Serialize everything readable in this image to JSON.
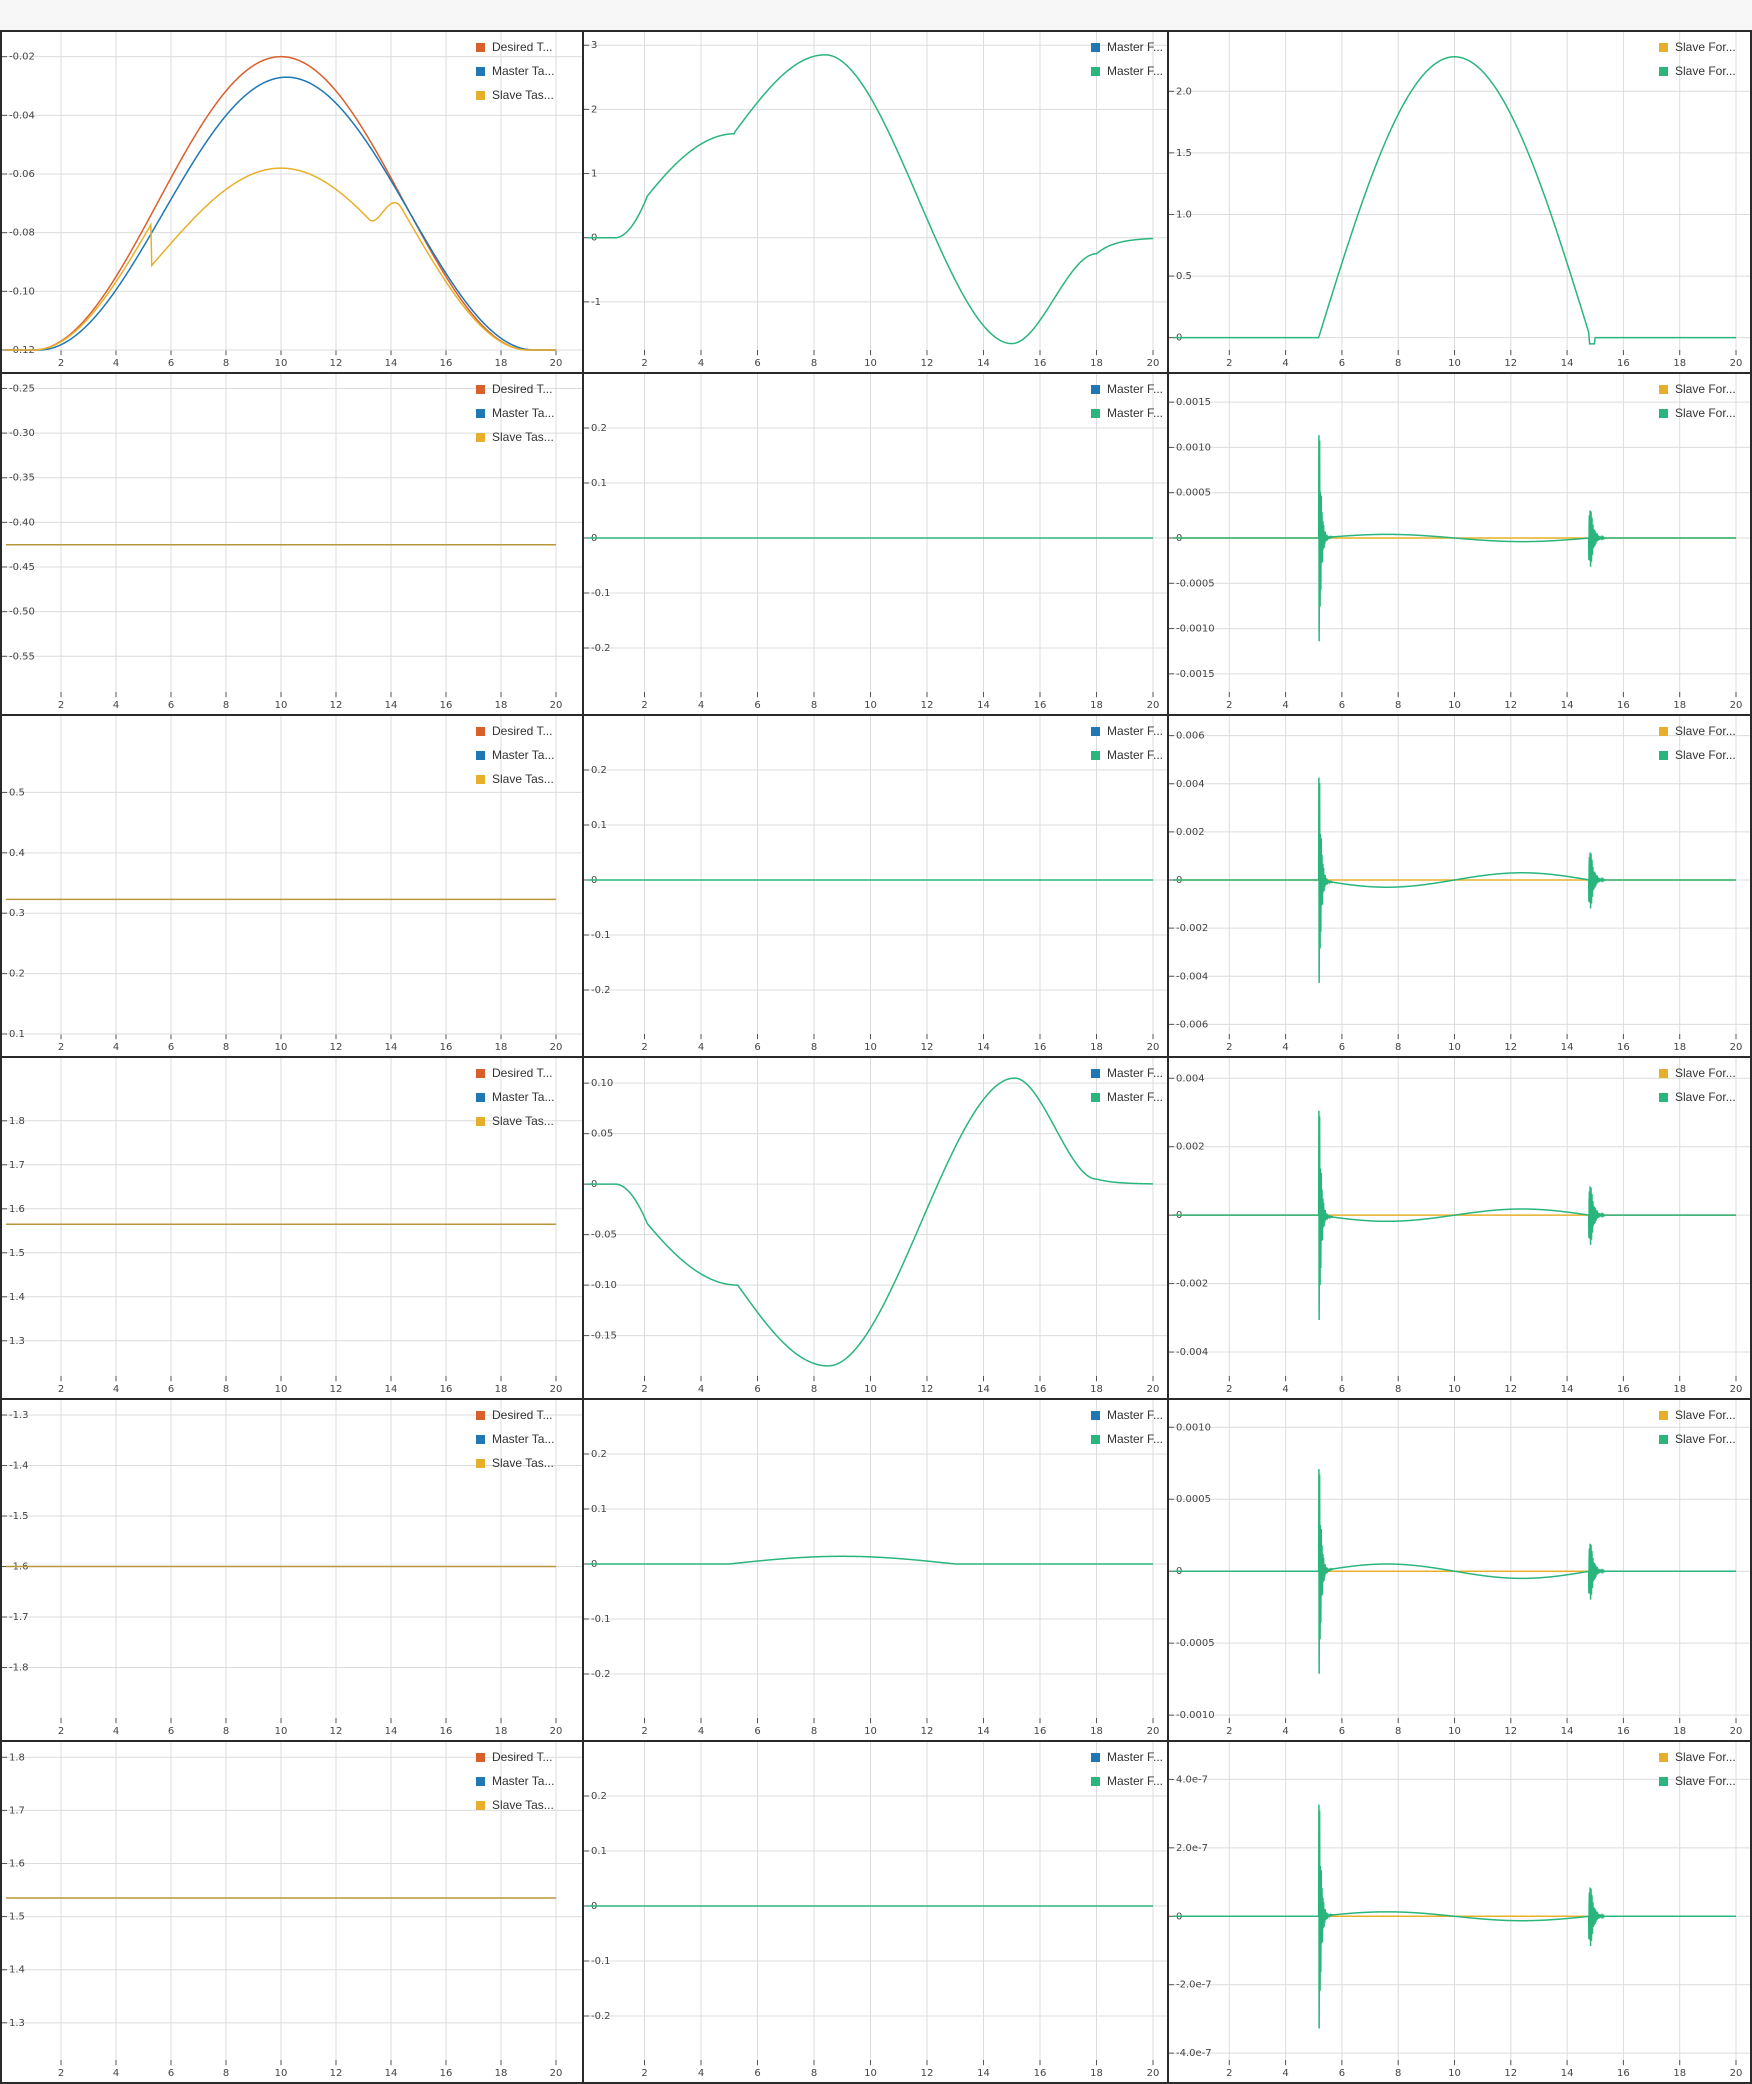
{
  "colors": {
    "desired": "#d95f2b",
    "master": "#1f77b4",
    "slave": "#e8b02a",
    "force_b": "#2ab57d",
    "grid": "#dcdcdc"
  },
  "legends": {
    "col1": [
      {
        "label": "Desired T...",
        "color": "#d95f2b"
      },
      {
        "label": "Master Ta...",
        "color": "#1f77b4"
      },
      {
        "label": "Slave Tas...",
        "color": "#e8b02a"
      }
    ],
    "col2": [
      {
        "label": "Master F...",
        "color": "#1f77b4"
      },
      {
        "label": "Master F...",
        "color": "#2ab57d"
      }
    ],
    "col3": [
      {
        "label": "Slave For...",
        "color": "#e8b02a"
      },
      {
        "label": "Slave For...",
        "color": "#2ab57d"
      }
    ]
  },
  "chart_data": [
    {
      "id": "p0",
      "type": "line",
      "legend": "col1",
      "xlim": [
        0,
        20
      ],
      "xticks": [
        2,
        4,
        6,
        8,
        10,
        12,
        14,
        16,
        18,
        20
      ],
      "ylim": [
        -0.12,
        -0.015
      ],
      "yticks": [
        -0.02,
        -0.04,
        -0.06,
        -0.08,
        -0.1,
        -0.12
      ],
      "yticklabels": [
        "-0.02",
        "-0.04",
        "-0.06",
        "-0.08",
        "-0.10",
        "-0.12"
      ],
      "series": [
        {
          "name": "Desired T...",
          "color": "#d95f2b",
          "fn": "bump",
          "params": {
            "base": -0.12,
            "amp": 0.1,
            "c": 10,
            "w": 9
          }
        },
        {
          "name": "Master Ta...",
          "color": "#1f77b4",
          "fn": "bump",
          "params": {
            "base": -0.12,
            "amp": 0.093,
            "c": 10.2,
            "w": 9
          }
        },
        {
          "name": "Slave Tas...",
          "color": "#e8b02a",
          "fn": "slavebump",
          "params": {
            "base": -0.12,
            "amp": 0.062,
            "c": 10,
            "w": 9,
            "x0": 5.3
          }
        }
      ]
    },
    {
      "id": "p1",
      "type": "line",
      "legend": "col2",
      "xlim": [
        0,
        20
      ],
      "xticks": [
        2,
        4,
        6,
        8,
        10,
        12,
        14,
        16,
        18,
        20
      ],
      "ylim": [
        -1.75,
        3.05
      ],
      "yticks": [
        3,
        2,
        1,
        0,
        -1
      ],
      "yticklabels": [
        "3",
        "2",
        "1",
        "0",
        "-1"
      ],
      "series": [
        {
          "name": "Master F...",
          "color": "#2ab57d",
          "fn": "mforce",
          "params": {
            "amp": 1
          }
        }
      ]
    },
    {
      "id": "p2",
      "type": "line",
      "legend": "col3",
      "xlim": [
        0,
        20
      ],
      "xticks": [
        2,
        4,
        6,
        8,
        10,
        12,
        14,
        16,
        18,
        20
      ],
      "ylim": [
        -0.1,
        2.4
      ],
      "yticks": [
        2.0,
        1.5,
        1.0,
        0.5,
        0
      ],
      "yticklabels": [
        "2.0",
        "1.5",
        "1.0",
        "0.5",
        "0"
      ],
      "series": [
        {
          "name": "Slave For...",
          "color": "#2ab57d",
          "fn": "sforce",
          "params": {}
        }
      ]
    },
    {
      "id": "p3",
      "type": "line",
      "legend": "col1",
      "xlim": [
        0,
        20
      ],
      "xticks": [
        2,
        4,
        6,
        8,
        10,
        12,
        14,
        16,
        18,
        20
      ],
      "ylim": [
        -0.59,
        -0.245
      ],
      "yticks": [
        -0.25,
        -0.3,
        -0.35,
        -0.4,
        -0.45,
        -0.5,
        -0.55
      ],
      "yticklabels": [
        "-0.25",
        "-0.30",
        "-0.35",
        "-0.40",
        "-0.45",
        "-0.50",
        "-0.55"
      ],
      "series": [
        {
          "name": "Slave Tas...",
          "color": "#b8963a",
          "fn": "flat",
          "params": {
            "v": -0.425
          }
        }
      ]
    },
    {
      "id": "p4",
      "type": "line",
      "legend": "col2",
      "xlim": [
        0,
        20
      ],
      "xticks": [
        2,
        4,
        6,
        8,
        10,
        12,
        14,
        16,
        18,
        20
      ],
      "ylim": [
        -0.28,
        0.28
      ],
      "yticks": [
        0.2,
        0.1,
        0,
        -0.1,
        -0.2
      ],
      "yticklabels": [
        "0.2",
        "0.1",
        "0",
        "-0.1",
        "-0.2"
      ],
      "series": [
        {
          "name": "Master F...",
          "color": "#2ab57d",
          "fn": "flat",
          "params": {
            "v": 0
          }
        }
      ]
    },
    {
      "id": "p5",
      "type": "line",
      "legend": "col3",
      "xlim": [
        0,
        20
      ],
      "xticks": [
        2,
        4,
        6,
        8,
        10,
        12,
        14,
        16,
        18,
        20
      ],
      "ylim": [
        -0.0017,
        0.0017
      ],
      "yticks": [
        0.0015,
        0.001,
        0.0005,
        0,
        -0.0005,
        -0.001,
        -0.0015
      ],
      "yticklabels": [
        "0.0015",
        "0.0010",
        "0.0005",
        "0",
        "-0.0005",
        "-0.0010",
        "-0.0015"
      ],
      "series": [
        {
          "name": "Slave For...",
          "color": "#e8b02a",
          "fn": "flat",
          "params": {
            "v": 0
          }
        },
        {
          "name": "Slave For...",
          "color": "#2ab57d",
          "fn": "spiky",
          "params": {
            "a1": 0.0016,
            "a2": 0.0004,
            "wave": 4e-05,
            "sign": 1
          }
        }
      ]
    },
    {
      "id": "p6",
      "type": "line",
      "legend": "col1",
      "xlim": [
        0,
        20
      ],
      "xticks": [
        2,
        4,
        6,
        8,
        10,
        12,
        14,
        16,
        18,
        20
      ],
      "ylim": [
        0.1,
        0.61
      ],
      "yticks": [
        0.5,
        0.4,
        0.3,
        0.2,
        0.1
      ],
      "yticklabels": [
        "0.5",
        "0.4",
        "0.3",
        "0.2",
        "0.1"
      ],
      "series": [
        {
          "name": "Slave Tas...",
          "color": "#b8963a",
          "fn": "flat",
          "params": {
            "v": 0.323
          }
        }
      ]
    },
    {
      "id": "p7",
      "type": "line",
      "legend": "col2",
      "xlim": [
        0,
        20
      ],
      "xticks": [
        2,
        4,
        6,
        8,
        10,
        12,
        14,
        16,
        18,
        20
      ],
      "ylim": [
        -0.28,
        0.28
      ],
      "yticks": [
        0.2,
        0.1,
        0,
        -0.1,
        -0.2
      ],
      "yticklabels": [
        "0.2",
        "0.1",
        "0",
        "-0.1",
        "-0.2"
      ],
      "series": [
        {
          "name": "Master F...",
          "color": "#2ab57d",
          "fn": "flat",
          "params": {
            "v": 0
          }
        }
      ]
    },
    {
      "id": "p8",
      "type": "line",
      "legend": "col3",
      "xlim": [
        0,
        20
      ],
      "xticks": [
        2,
        4,
        6,
        8,
        10,
        12,
        14,
        16,
        18,
        20
      ],
      "ylim": [
        -0.0064,
        0.0064
      ],
      "yticks": [
        0.006,
        0.004,
        0.002,
        0,
        -0.002,
        -0.004,
        -0.006
      ],
      "yticklabels": [
        "0.006",
        "0.004",
        "0.002",
        "0",
        "-0.002",
        "-0.004",
        "-0.006"
      ],
      "series": [
        {
          "name": "Slave For...",
          "color": "#e8b02a",
          "fn": "flat",
          "params": {
            "v": 0
          }
        },
        {
          "name": "Slave For...",
          "color": "#2ab57d",
          "fn": "spiky",
          "params": {
            "a1": 0.006,
            "a2": 0.0015,
            "wave": 0.0003,
            "sign": -1
          }
        }
      ]
    },
    {
      "id": "p9",
      "type": "line",
      "legend": "col1",
      "xlim": [
        0,
        20
      ],
      "xticks": [
        2,
        4,
        6,
        8,
        10,
        12,
        14,
        16,
        18,
        20
      ],
      "ylim": [
        1.22,
        1.92
      ],
      "yticks": [
        1.8,
        1.7,
        1.6,
        1.5,
        1.4,
        1.3
      ],
      "yticklabels": [
        "1.8",
        "1.7",
        "1.6",
        "1.5",
        "1.4",
        "1.3"
      ],
      "series": [
        {
          "name": "Slave Tas...",
          "color": "#b8963a",
          "fn": "flat",
          "params": {
            "v": 1.565
          }
        }
      ]
    },
    {
      "id": "p10",
      "type": "line",
      "legend": "col2",
      "xlim": [
        0,
        20
      ],
      "xticks": [
        2,
        4,
        6,
        8,
        10,
        12,
        14,
        16,
        18,
        20
      ],
      "ylim": [
        -0.19,
        0.115
      ],
      "yticks": [
        0.1,
        0.05,
        0,
        -0.05,
        -0.1,
        -0.15
      ],
      "yticklabels": [
        "0.10",
        "0.05",
        "0",
        "-0.05",
        "-0.10",
        "-0.15"
      ],
      "series": [
        {
          "name": "Master F...",
          "color": "#2ab57d",
          "fn": "mforce2",
          "params": {}
        }
      ]
    },
    {
      "id": "p11",
      "type": "line",
      "legend": "col3",
      "xlim": [
        0,
        20
      ],
      "xticks": [
        2,
        4,
        6,
        8,
        10,
        12,
        14,
        16,
        18,
        20
      ],
      "ylim": [
        -0.0047,
        0.0043
      ],
      "yticks": [
        0.004,
        0.002,
        0,
        -0.002,
        -0.004
      ],
      "yticklabels": [
        "0.004",
        "0.002",
        "0",
        "-0.002",
        "-0.004"
      ],
      "series": [
        {
          "name": "Slave For...",
          "color": "#e8b02a",
          "fn": "flat",
          "params": {
            "v": 0
          }
        },
        {
          "name": "Slave For...",
          "color": "#2ab57d",
          "fn": "spiky",
          "params": {
            "a1": 0.0043,
            "a2": 0.0011,
            "wave": 0.00018,
            "sign": -1
          }
        }
      ]
    },
    {
      "id": "p12",
      "type": "line",
      "legend": "col1",
      "xlim": [
        0,
        20
      ],
      "xticks": [
        2,
        4,
        6,
        8,
        10,
        12,
        14,
        16,
        18,
        20
      ],
      "ylim": [
        -1.9,
        -1.29
      ],
      "yticks": [
        -1.3,
        -1.4,
        -1.5,
        -1.6,
        -1.7,
        -1.8
      ],
      "yticklabels": [
        "-1.3",
        "-1.4",
        "-1.5",
        "-1.6",
        "-1.7",
        "-1.8"
      ],
      "series": [
        {
          "name": "Slave Tas...",
          "color": "#b8963a",
          "fn": "flat",
          "params": {
            "v": -1.6
          }
        }
      ]
    },
    {
      "id": "p13",
      "type": "line",
      "legend": "col2",
      "xlim": [
        0,
        20
      ],
      "xticks": [
        2,
        4,
        6,
        8,
        10,
        12,
        14,
        16,
        18,
        20
      ],
      "ylim": [
        -0.28,
        0.28
      ],
      "yticks": [
        0.2,
        0.1,
        0,
        -0.1,
        -0.2
      ],
      "yticklabels": [
        "0.2",
        "0.1",
        "0",
        "-0.1",
        "-0.2"
      ],
      "series": [
        {
          "name": "Master F...",
          "color": "#2ab57d",
          "fn": "smallwave",
          "params": {
            "amp": 0.014
          }
        }
      ]
    },
    {
      "id": "p14",
      "type": "line",
      "legend": "col3",
      "xlim": [
        0,
        20
      ],
      "xticks": [
        2,
        4,
        6,
        8,
        10,
        12,
        14,
        16,
        18,
        20
      ],
      "ylim": [
        -0.00102,
        0.00112
      ],
      "yticks": [
        0.001,
        0.0005,
        0,
        -0.0005,
        -0.001
      ],
      "yticklabels": [
        "0.0010",
        "0.0005",
        "0",
        "-0.0005",
        "-0.0010"
      ],
      "series": [
        {
          "name": "Slave For...",
          "color": "#e8b02a",
          "fn": "flat",
          "params": {
            "v": 0
          }
        },
        {
          "name": "Slave For...",
          "color": "#2ab57d",
          "fn": "spiky",
          "params": {
            "a1": 0.001,
            "a2": 0.00025,
            "wave": 5e-05,
            "sign": 1
          }
        }
      ]
    },
    {
      "id": "p15",
      "type": "line",
      "legend": "col1",
      "xlim": [
        0,
        20
      ],
      "xticks": [
        2,
        4,
        6,
        8,
        10,
        12,
        14,
        16,
        18,
        20
      ],
      "ylim": [
        1.23,
        1.81
      ],
      "yticks": [
        1.8,
        1.7,
        1.6,
        1.5,
        1.4,
        1.3
      ],
      "yticklabels": [
        "1.8",
        "1.7",
        "1.6",
        "1.5",
        "1.4",
        "1.3"
      ],
      "series": [
        {
          "name": "Slave Tas...",
          "color": "#b8963a",
          "fn": "flat",
          "params": {
            "v": 1.535
          }
        }
      ]
    },
    {
      "id": "p16",
      "type": "line",
      "legend": "col2",
      "xlim": [
        0,
        20
      ],
      "xticks": [
        2,
        4,
        6,
        8,
        10,
        12,
        14,
        16,
        18,
        20
      ],
      "ylim": [
        -0.28,
        0.28
      ],
      "yticks": [
        0.2,
        0.1,
        0,
        -0.1,
        -0.2
      ],
      "yticklabels": [
        "0.2",
        "0.1",
        "0",
        "-0.1",
        "-0.2"
      ],
      "series": [
        {
          "name": "Master F...",
          "color": "#2ab57d",
          "fn": "flat",
          "params": {
            "v": 0
          }
        }
      ]
    },
    {
      "id": "p17",
      "type": "line",
      "legend": "col3",
      "xlim": [
        0,
        20
      ],
      "xticks": [
        2,
        4,
        6,
        8,
        10,
        12,
        14,
        16,
        18,
        20
      ],
      "ylim": [
        -4.2e-07,
        4.8e-07
      ],
      "yticks": [
        4e-07,
        2e-07,
        0,
        -2e-07,
        -4e-07
      ],
      "yticklabels": [
        "4.0e-7",
        "2.0e-7",
        "0",
        "-2.0e-7",
        "-4.0e-7"
      ],
      "series": [
        {
          "name": "Slave For...",
          "color": "#e8b02a",
          "fn": "flat",
          "params": {
            "v": 0
          }
        },
        {
          "name": "Slave For...",
          "color": "#2ab57d",
          "fn": "spiky",
          "params": {
            "a1": 4.6e-07,
            "a2": 1.1e-07,
            "wave": 1.3e-08,
            "sign": 1
          }
        }
      ]
    }
  ]
}
